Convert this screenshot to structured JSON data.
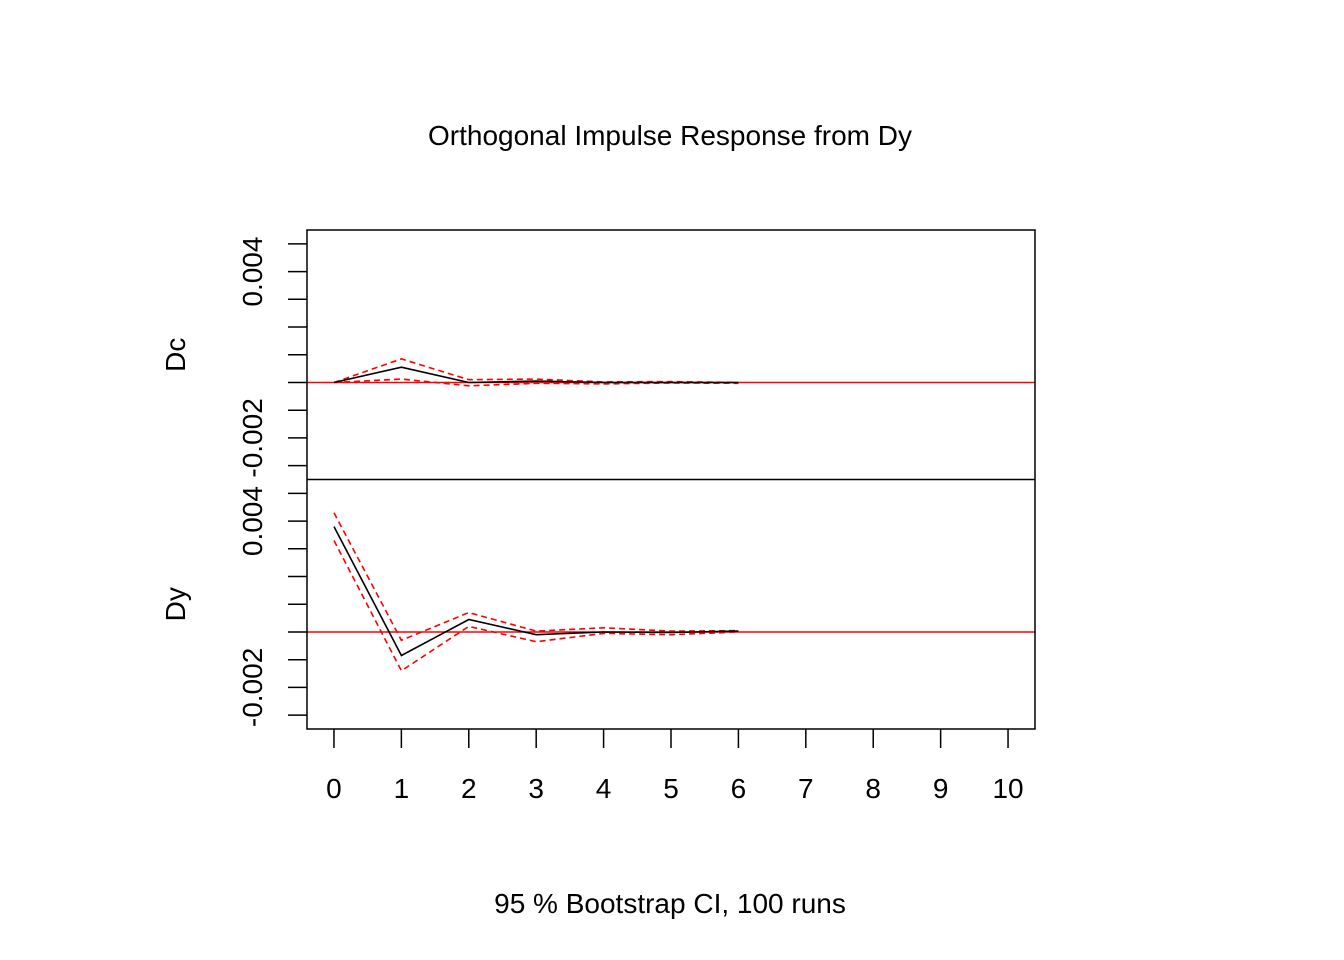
{
  "chart_data": {
    "type": "line",
    "title": "Orthogonal Impulse Response from Dy",
    "caption": "95 % Bootstrap CI,  100 runs",
    "x": [
      0,
      1,
      2,
      3,
      4,
      5,
      6,
      7,
      8,
      9,
      10
    ],
    "x_tick_labels": [
      "0",
      "1",
      "2",
      "3",
      "4",
      "5",
      "6",
      "7",
      "8",
      "9",
      "10"
    ],
    "xlim": [
      -0.4,
      10.4
    ],
    "colors": {
      "response": "#000000",
      "ci": "#ff0000",
      "zero_line": "#ff0000"
    },
    "panels": [
      {
        "name": "Dc",
        "ylabel": "Dc",
        "ylim": [
          -0.0035,
          0.0055
        ],
        "y_ticks": [
          -0.003,
          -0.002,
          -0.001,
          0.0,
          0.001,
          0.002,
          0.003,
          0.004,
          0.005
        ],
        "y_tick_labels": [
          {
            "value": -0.002,
            "text": "-0.002"
          },
          {
            "value": 0.004,
            "text": "0.004"
          }
        ],
        "response": [
          0.0,
          0.00055,
          0.0,
          5e-05,
          0.0,
          0.0,
          0.0
        ],
        "ci_upper": [
          0.0,
          0.00085,
          0.0001,
          0.00012,
          2e-05,
          3e-05,
          0.0
        ],
        "ci_lower": [
          0.0,
          0.00012,
          -0.00012,
          -3e-05,
          -5e-05,
          -2e-05,
          -3e-05
        ]
      },
      {
        "name": "Dy",
        "ylabel": "Dy",
        "ylim": [
          -0.0035,
          0.0055
        ],
        "y_ticks": [
          -0.003,
          -0.002,
          -0.001,
          0.0,
          0.001,
          0.002,
          0.003,
          0.004,
          0.005
        ],
        "y_tick_labels": [
          {
            "value": -0.002,
            "text": "-0.002"
          },
          {
            "value": 0.004,
            "text": "0.004"
          }
        ],
        "response": [
          0.0038,
          -0.00085,
          0.00045,
          -0.0001,
          0.0,
          -2e-05,
          3e-05
        ],
        "ci_upper": [
          0.0043,
          -0.0003,
          0.0007,
          3e-05,
          0.00015,
          3e-05,
          5e-05
        ],
        "ci_lower": [
          0.0033,
          -0.0014,
          0.0002,
          -0.00035,
          -5e-05,
          -0.0001,
          0.0
        ]
      }
    ]
  }
}
